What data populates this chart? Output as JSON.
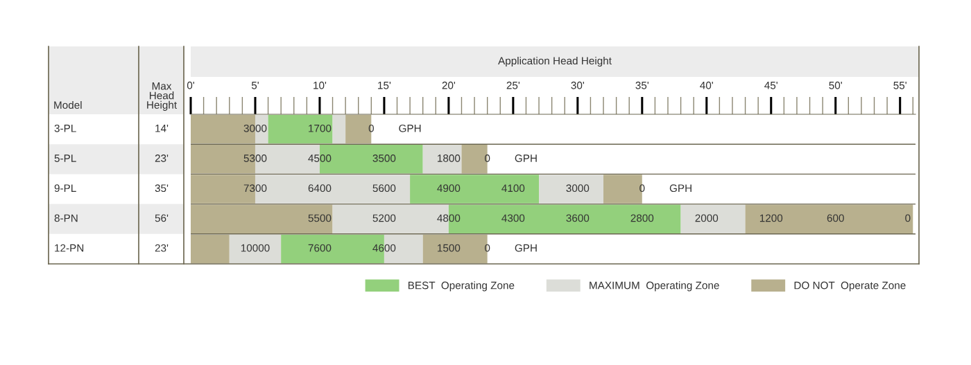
{
  "chart_data": {
    "type": "bar",
    "orientation": "horizontal",
    "stacked": true,
    "xlabel": "Application Head Height",
    "ylabel": "Model",
    "y2label": "Max\nHead\nHeight",
    "categories": [
      "3-PL",
      "5-PL",
      "9-PL",
      "8-PN",
      "12-PN"
    ],
    "series": [
      {
        "name": "DO NOT  Operate Zone",
        "color": "#b8b08e",
        "values": [
          5,
          5,
          5,
          11,
          3
        ]
      },
      {
        "name": "MAXIMUM  Operating Zone",
        "color": "#dcddd8",
        "values": [
          1,
          5,
          12,
          9,
          4
        ]
      },
      {
        "name": "BEST  Operating Zone",
        "color": "#93d07c",
        "values": [
          5,
          8,
          10,
          18,
          8
        ]
      },
      {
        "color": "#dcddd8",
        "values": [
          1,
          3,
          5,
          5,
          3
        ]
      },
      {
        "color": "#b8b08e",
        "values": [
          2,
          2,
          3,
          13,
          5
        ]
      }
    ],
    "xlim": [
      0,
      56.2
    ],
    "xticks": [
      {
        "value": 0,
        "label": "0'"
      },
      {
        "value": 5,
        "label": "5'"
      },
      {
        "value": 10,
        "label": "10'"
      },
      {
        "value": 15,
        "label": "15'"
      },
      {
        "value": 20,
        "label": "20'"
      },
      {
        "value": 25,
        "label": "25'"
      },
      {
        "value": 30,
        "label": "30'"
      },
      {
        "value": 35,
        "label": "35'"
      },
      {
        "value": 40,
        "label": "40'"
      },
      {
        "value": 45,
        "label": "45'"
      },
      {
        "value": 50,
        "label": "50'"
      },
      {
        "value": 55,
        "label": "55'"
      }
    ],
    "legend": "bottom right",
    "annotations": [
      "14'",
      "23'",
      "35'",
      "56'",
      "23'",
      "GPH",
      "GPH",
      "GPH",
      "GPH",
      {
        "text": "3000",
        "x": 5,
        "y": "3-PL"
      },
      {
        "text": "1700",
        "x": 10,
        "y": "3-PL"
      },
      {
        "text": "0",
        "x": 14,
        "y": "3-PL"
      },
      {
        "text": "5300",
        "x": 5,
        "y": "5-PL"
      },
      {
        "text": "4500",
        "x": 10,
        "y": "5-PL"
      },
      {
        "text": "3500",
        "x": 15,
        "y": "5-PL"
      },
      {
        "text": "1800",
        "x": 20,
        "y": "5-PL"
      },
      {
        "text": "0",
        "x": 23,
        "y": "5-PL"
      },
      {
        "text": "7300",
        "x": 5,
        "y": "9-PL"
      },
      {
        "text": "6400",
        "x": 10,
        "y": "9-PL"
      },
      {
        "text": "5600",
        "x": 15,
        "y": "9-PL"
      },
      {
        "text": "4900",
        "x": 20,
        "y": "9-PL"
      },
      {
        "text": "4100",
        "x": 25,
        "y": "9-PL"
      },
      {
        "text": "3000",
        "x": 30,
        "y": "9-PL"
      },
      {
        "text": "0",
        "x": 35,
        "y": "9-PL"
      },
      {
        "text": "5500",
        "x": 10,
        "y": "8-PN"
      },
      {
        "text": "5200",
        "x": 15,
        "y": "8-PN"
      },
      {
        "text": "4800",
        "x": 20,
        "y": "8-PN"
      },
      {
        "text": "4300",
        "x": 25,
        "y": "8-PN"
      },
      {
        "text": "3600",
        "x": 30,
        "y": "8-PN"
      },
      {
        "text": "2800",
        "x": 35,
        "y": "8-PN"
      },
      {
        "text": "2000",
        "x": 40,
        "y": "8-PN"
      },
      {
        "text": "1200",
        "x": 45,
        "y": "8-PN"
      },
      {
        "text": "600",
        "x": 50,
        "y": "8-PN"
      },
      {
        "text": "0",
        "x": 55.6,
        "y": "8-PN"
      },
      {
        "text": "10000",
        "x": 5,
        "y": "12-PN"
      },
      {
        "text": "7600",
        "x": 10,
        "y": "12-PN"
      },
      {
        "text": "4600",
        "x": 15,
        "y": "12-PN"
      },
      {
        "text": "1500",
        "x": 20,
        "y": "12-PN"
      },
      {
        "text": "0",
        "x": 23,
        "y": "12-PN"
      }
    ]
  }
}
